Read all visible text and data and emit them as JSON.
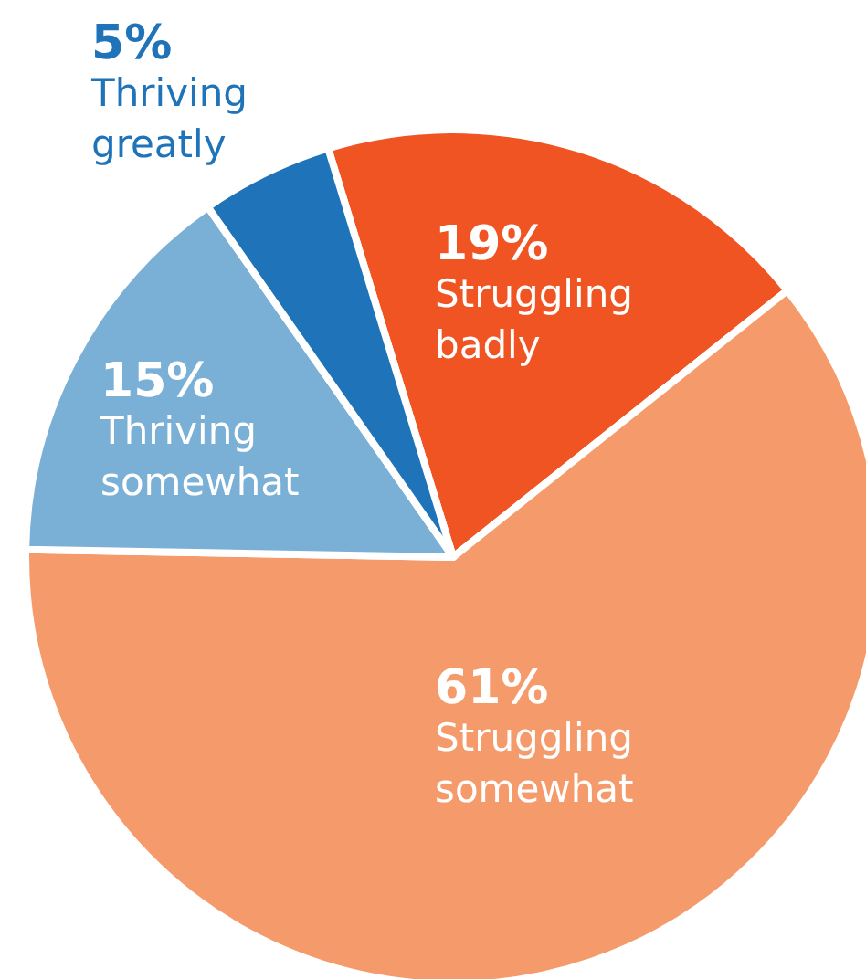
{
  "chart_data": {
    "type": "pie",
    "categories": [
      "Struggling badly",
      "Struggling somewhat",
      "Thriving somewhat",
      "Thriving greatly"
    ],
    "values": [
      19,
      61,
      15,
      5
    ],
    "colors": [
      "#f05423",
      "#f59a6a",
      "#7aafd6",
      "#1f73b9"
    ],
    "value_labels": [
      "19%",
      "61%",
      "15%",
      "5%"
    ]
  }
}
